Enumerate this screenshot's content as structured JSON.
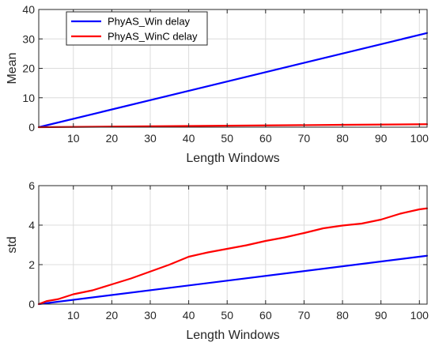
{
  "chart_data": [
    {
      "type": "line",
      "xlabel": "Length Windows",
      "ylabel": "Mean",
      "xlim": [
        1,
        102
      ],
      "ylim": [
        0,
        40
      ],
      "xticks": [
        10,
        20,
        30,
        40,
        50,
        60,
        70,
        80,
        90,
        100
      ],
      "yticks": [
        0,
        10,
        20,
        30,
        40
      ],
      "grid": true,
      "legend": "top-left",
      "series": [
        {
          "name": "PhyAS_Win delay",
          "color": "#0000ff",
          "x": [
            1,
            102
          ],
          "y": [
            0,
            32
          ]
        },
        {
          "name": "PhyAS_WinC delay",
          "color": "#ff0000",
          "x": [
            1,
            20,
            40,
            60,
            80,
            102
          ],
          "y": [
            0,
            0.2,
            0.4,
            0.6,
            0.8,
            1.0
          ]
        }
      ]
    },
    {
      "type": "line",
      "xlabel": "Length Windows",
      "ylabel": "std",
      "xlim": [
        1,
        102
      ],
      "ylim": [
        0,
        6
      ],
      "xticks": [
        10,
        20,
        30,
        40,
        50,
        60,
        70,
        80,
        90,
        100
      ],
      "yticks": [
        0,
        2,
        4,
        6
      ],
      "grid": true,
      "series": [
        {
          "name": "",
          "color": "#0000ff",
          "x": [
            1,
            102
          ],
          "y": [
            0,
            2.45
          ]
        },
        {
          "name": "",
          "color": "#ff0000",
          "x": [
            1,
            3,
            6,
            10,
            15,
            20,
            25,
            30,
            35,
            40,
            45,
            50,
            55,
            60,
            65,
            70,
            75,
            80,
            85,
            90,
            95,
            100,
            102
          ],
          "y": [
            0,
            0.15,
            0.25,
            0.5,
            0.7,
            1.0,
            1.3,
            1.65,
            2.0,
            2.4,
            2.62,
            2.8,
            2.98,
            3.2,
            3.38,
            3.6,
            3.84,
            3.98,
            4.08,
            4.28,
            4.58,
            4.8,
            4.85
          ]
        }
      ]
    }
  ]
}
